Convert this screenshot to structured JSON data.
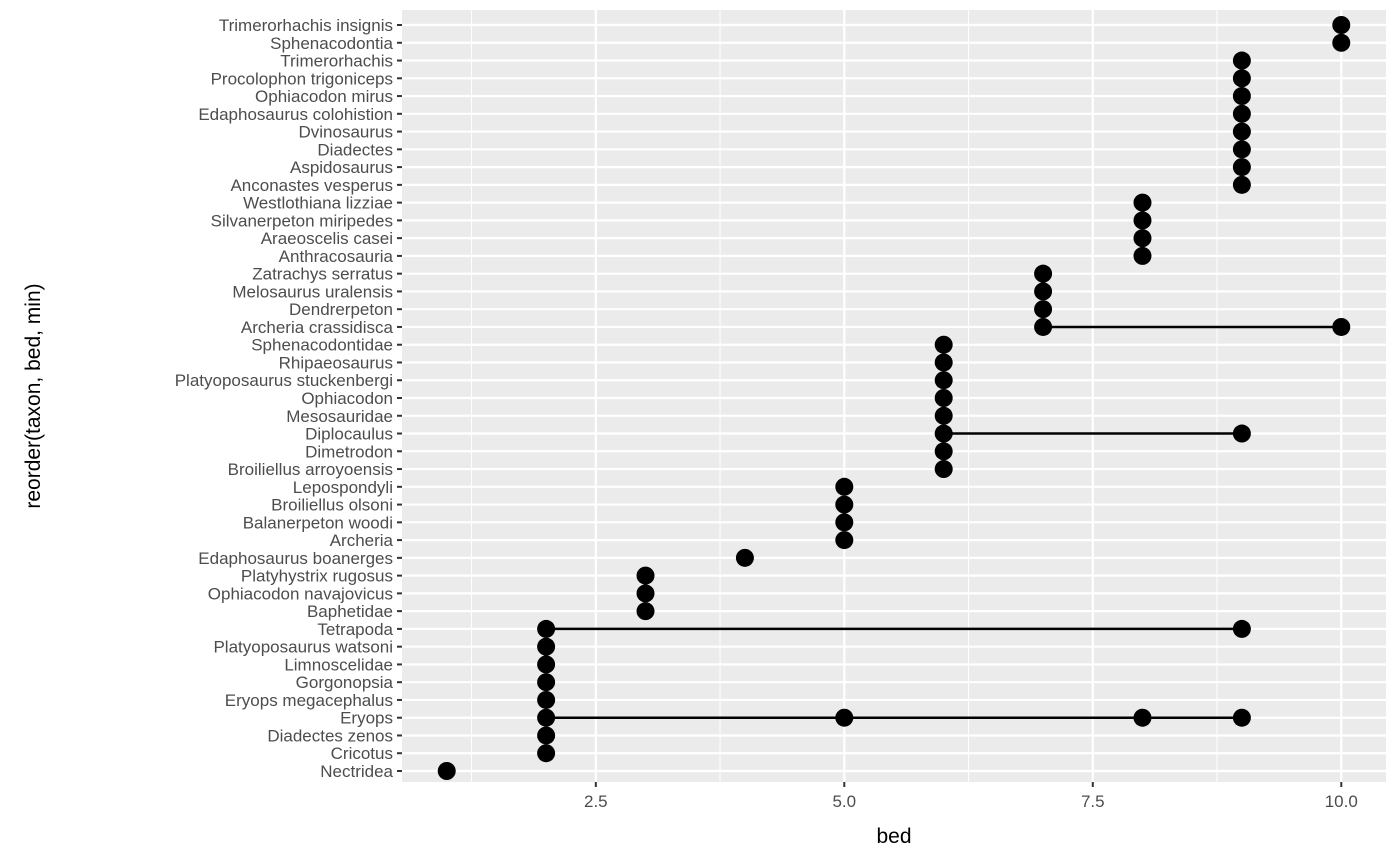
{
  "chart_data": {
    "type": "scatter",
    "subtype": "dot-range (points joined by a line per taxon)",
    "xlabel": "bed",
    "ylabel": "reorder(taxon, bed, min)",
    "xlim": [
      0.55,
      10.45
    ],
    "x_ticks": [
      2.5,
      5.0,
      7.5,
      10.0
    ],
    "x_tick_labels": [
      "2.5",
      "5.0",
      "7.5",
      "10.0"
    ],
    "grid": true,
    "colors": {
      "panel": "#ebebeb",
      "grid": "#ffffff",
      "point": "#000000",
      "tick_text": "#4d4d4d"
    },
    "taxa": [
      {
        "name": "Trimerorhachis insignis",
        "beds": [
          10
        ]
      },
      {
        "name": "Sphenacodontia",
        "beds": [
          10
        ]
      },
      {
        "name": "Trimerorhachis",
        "beds": [
          9
        ]
      },
      {
        "name": "Procolophon trigoniceps",
        "beds": [
          9
        ]
      },
      {
        "name": "Ophiacodon mirus",
        "beds": [
          9
        ]
      },
      {
        "name": "Edaphosaurus colohistion",
        "beds": [
          9
        ]
      },
      {
        "name": "Dvinosaurus",
        "beds": [
          9
        ]
      },
      {
        "name": "Diadectes",
        "beds": [
          9
        ]
      },
      {
        "name": "Aspidosaurus",
        "beds": [
          9
        ]
      },
      {
        "name": "Anconastes vesperus",
        "beds": [
          9
        ]
      },
      {
        "name": "Westlothiana lizziae",
        "beds": [
          8
        ]
      },
      {
        "name": "Silvanerpeton miripedes",
        "beds": [
          8
        ]
      },
      {
        "name": "Araeoscelis casei",
        "beds": [
          8
        ]
      },
      {
        "name": "Anthracosauria",
        "beds": [
          8
        ]
      },
      {
        "name": "Zatrachys serratus",
        "beds": [
          7
        ]
      },
      {
        "name": "Melosaurus uralensis",
        "beds": [
          7
        ]
      },
      {
        "name": "Dendrerpeton",
        "beds": [
          7
        ]
      },
      {
        "name": "Archeria crassidisca",
        "beds": [
          7,
          10
        ]
      },
      {
        "name": "Sphenacodontidae",
        "beds": [
          6
        ]
      },
      {
        "name": "Rhipaeosaurus",
        "beds": [
          6
        ]
      },
      {
        "name": "Platyoposaurus stuckenbergi",
        "beds": [
          6
        ]
      },
      {
        "name": "Ophiacodon",
        "beds": [
          6
        ]
      },
      {
        "name": "Mesosauridae",
        "beds": [
          6
        ]
      },
      {
        "name": "Diplocaulus",
        "beds": [
          6,
          9
        ]
      },
      {
        "name": "Dimetrodon",
        "beds": [
          6
        ]
      },
      {
        "name": "Broiliellus arroyoensis",
        "beds": [
          6
        ]
      },
      {
        "name": "Lepospondyli",
        "beds": [
          5
        ]
      },
      {
        "name": "Broiliellus olsoni",
        "beds": [
          5
        ]
      },
      {
        "name": "Balanerpeton woodi",
        "beds": [
          5
        ]
      },
      {
        "name": "Archeria",
        "beds": [
          5
        ]
      },
      {
        "name": "Edaphosaurus boanerges",
        "beds": [
          4
        ]
      },
      {
        "name": "Platyhystrix rugosus",
        "beds": [
          3
        ]
      },
      {
        "name": "Ophiacodon navajovicus",
        "beds": [
          3
        ]
      },
      {
        "name": "Baphetidae",
        "beds": [
          3
        ]
      },
      {
        "name": "Tetrapoda",
        "beds": [
          2,
          9
        ]
      },
      {
        "name": "Platyoposaurus watsoni",
        "beds": [
          2
        ]
      },
      {
        "name": "Limnoscelidae",
        "beds": [
          2
        ]
      },
      {
        "name": "Gorgonopsia",
        "beds": [
          2
        ]
      },
      {
        "name": "Eryops megacephalus",
        "beds": [
          2
        ]
      },
      {
        "name": "Eryops",
        "beds": [
          2,
          5,
          8,
          9
        ]
      },
      {
        "name": "Diadectes zenos",
        "beds": [
          2
        ]
      },
      {
        "name": "Cricotus",
        "beds": [
          2
        ]
      },
      {
        "name": "Nectridea",
        "beds": [
          1
        ]
      }
    ]
  }
}
